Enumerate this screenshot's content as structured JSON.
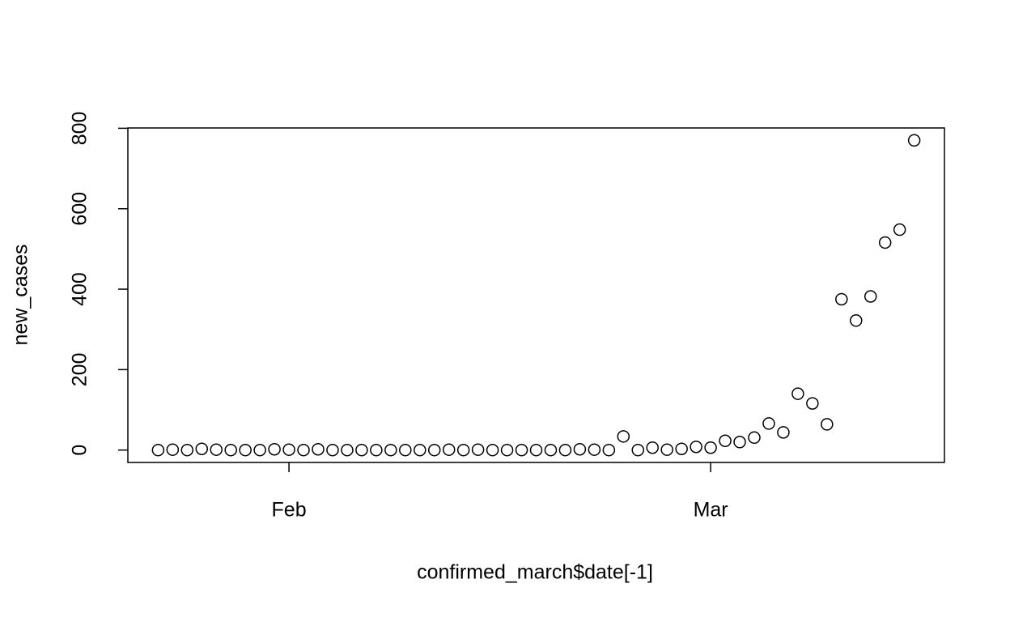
{
  "chart_data": {
    "type": "scatter",
    "x_label": "confirmed_march$date[-1]",
    "y_label": "new_cases",
    "categories": [
      null,
      null,
      null,
      null,
      null,
      null,
      null,
      null,
      null,
      "Feb",
      null,
      null,
      null,
      null,
      null,
      null,
      null,
      null,
      null,
      null,
      null,
      null,
      null,
      null,
      null,
      null,
      null,
      null,
      null,
      null,
      null,
      null,
      null,
      null,
      null,
      null,
      null,
      null,
      "Mar",
      null,
      null,
      null,
      null,
      null,
      null,
      null,
      null,
      null,
      null,
      null,
      null,
      null,
      null
    ],
    "values": [
      0,
      1,
      0,
      3,
      1,
      0,
      0,
      0,
      2,
      1,
      0,
      2,
      0,
      0,
      0,
      0,
      0,
      0,
      0,
      0,
      1,
      0,
      1,
      0,
      0,
      0,
      0,
      0,
      0,
      2,
      1,
      0,
      34,
      0,
      6,
      1,
      3,
      8,
      6,
      23,
      20,
      31,
      66,
      44,
      140,
      116,
      64,
      375,
      322,
      382,
      516,
      548,
      770
    ],
    "color": "#000000",
    "ylim": [
      -30.8,
      800.8
    ],
    "yticks": [
      0,
      200,
      400,
      600,
      800
    ]
  }
}
